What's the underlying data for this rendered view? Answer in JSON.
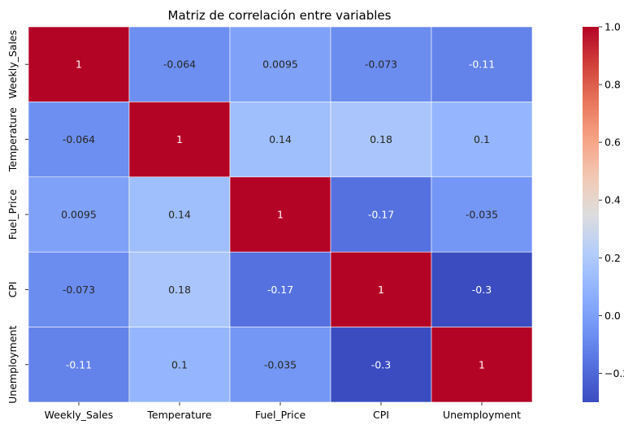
{
  "chart_data": {
    "type": "heatmap",
    "title": "Matriz de correlación entre variables",
    "xlabel": "",
    "ylabel": "",
    "rows": [
      "Weekly_Sales",
      "Temperature",
      "Fuel_Price",
      "CPI",
      "Unemployment"
    ],
    "cols": [
      "Weekly_Sales",
      "Temperature",
      "Fuel_Price",
      "CPI",
      "Unemployment"
    ],
    "values": [
      [
        1,
        -0.064,
        0.0095,
        -0.073,
        -0.11
      ],
      [
        -0.064,
        1,
        0.14,
        0.18,
        0.1
      ],
      [
        0.0095,
        0.14,
        1,
        -0.17,
        -0.035
      ],
      [
        -0.073,
        0.18,
        -0.17,
        1,
        -0.3
      ],
      [
        -0.11,
        0.1,
        -0.035,
        -0.3,
        1
      ]
    ],
    "value_labels": [
      [
        "1",
        "-0.064",
        "0.0095",
        "-0.073",
        "-0.11"
      ],
      [
        "-0.064",
        "1",
        "0.14",
        "0.18",
        "0.1"
      ],
      [
        "0.0095",
        "0.14",
        "1",
        "-0.17",
        "-0.035"
      ],
      [
        "-0.073",
        "0.18",
        "-0.17",
        "1",
        "-0.3"
      ],
      [
        "-0.11",
        "0.1",
        "-0.035",
        "-0.3",
        "1"
      ]
    ],
    "colormap": "coolwarm",
    "vmin": -0.3,
    "vmax": 1.0,
    "colorbar_ticks": [
      1.0,
      0.8,
      0.6,
      0.4,
      0.2,
      0.0,
      -0.2
    ],
    "colorbar_tick_labels": [
      "1.0",
      "0.8",
      "0.6",
      "0.4",
      "0.2",
      "0.0",
      "−0.2"
    ],
    "grid": true,
    "legend": "colorbar-right"
  }
}
